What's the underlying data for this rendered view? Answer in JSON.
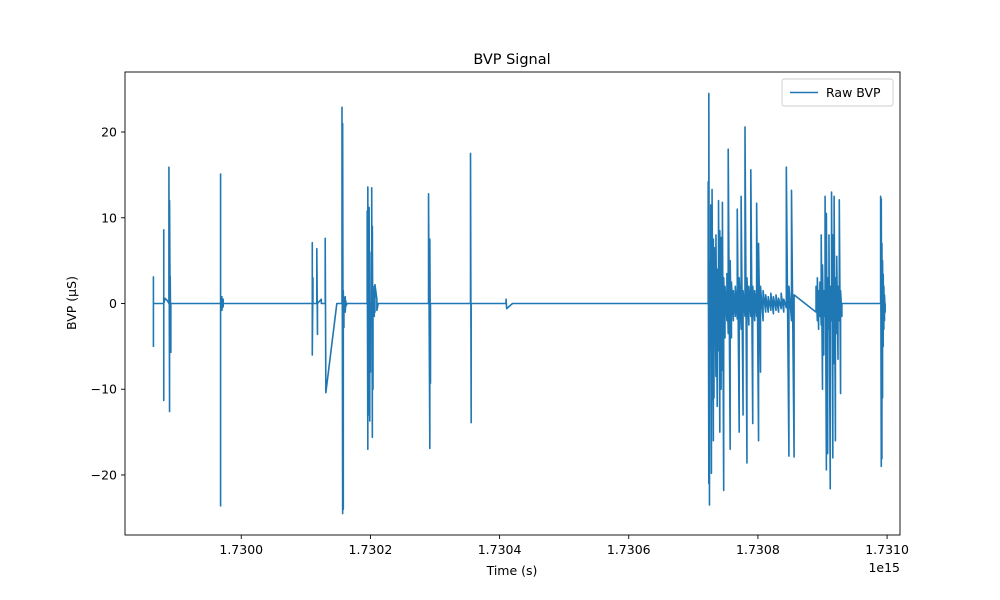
{
  "chart_data": {
    "type": "line",
    "title": "BVP Signal",
    "xlabel": "Time (s)",
    "ylabel": "BVP (μS)",
    "x_offset_label": "1e15",
    "xlim": [
      1.72982,
      1.73102
    ],
    "ylim": [
      -27,
      27
    ],
    "x_ticks": [
      1.73,
      1.7302,
      1.7304,
      1.7306,
      1.7308,
      1.731
    ],
    "x_tick_labels": [
      "1.7300",
      "1.7302",
      "1.7304",
      "1.7306",
      "1.7308",
      "1.7310"
    ],
    "y_ticks": [
      -20,
      -10,
      0,
      10,
      20
    ],
    "y_tick_labels": [
      "−20",
      "−10",
      "0",
      "10",
      "20"
    ],
    "legend": {
      "position": "top-right"
    },
    "grid": false,
    "series": [
      {
        "name": "Raw BVP",
        "color": "#1f77b4",
        "x": [
          1.729864,
          1.729864,
          1.729864,
          1.729864,
          1.72988,
          1.72988,
          1.72988,
          1.72988,
          1.729882,
          1.729886,
          1.729888,
          1.729888,
          1.729889,
          1.729889,
          1.72989,
          1.72989,
          1.729891,
          1.729891,
          1.72991,
          1.729968,
          1.729968,
          1.729968,
          1.729968,
          1.72997,
          1.72997,
          1.729972,
          1.729972,
          1.729972,
          1.73004,
          1.73004,
          1.73011,
          1.73011,
          1.73011,
          1.730111,
          1.730111,
          1.730117,
          1.730117,
          1.730118,
          1.730118,
          1.730124,
          1.730124,
          1.73013,
          1.73013,
          1.730131,
          1.730148,
          1.730156,
          1.730156,
          1.730157,
          1.730157,
          1.730158,
          1.730158,
          1.730159,
          1.730159,
          1.730161,
          1.730161,
          1.730162,
          1.730162,
          1.730164,
          1.730195,
          1.730195,
          1.730196,
          1.730196,
          1.730197,
          1.730197,
          1.730198,
          1.730198,
          1.730199,
          1.730199,
          1.7302,
          1.7302,
          1.730202,
          1.730202,
          1.730203,
          1.730203,
          1.730204,
          1.730204,
          1.730206,
          1.730206,
          1.730207,
          1.730207,
          1.73021,
          1.73021,
          1.73021,
          1.730212,
          1.730285,
          1.73029,
          1.73029,
          1.730292,
          1.730292,
          1.730293,
          1.730293,
          1.7303,
          1.730326,
          1.730355,
          1.730355,
          1.730356,
          1.730356,
          1.730357,
          1.73041,
          1.73041,
          1.730411,
          1.73042,
          1.73072,
          1.730723,
          1.730723,
          1.730724,
          1.730724,
          1.730725,
          1.730725,
          1.730726,
          1.730726,
          1.730727,
          1.730727,
          1.730728,
          1.730728,
          1.730729,
          1.730729,
          1.730731,
          1.730731,
          1.730732,
          1.730732,
          1.730733,
          1.730733,
          1.730735,
          1.730735,
          1.730737,
          1.730737,
          1.730739,
          1.730739,
          1.730741,
          1.730741,
          1.730743,
          1.730743,
          1.730745,
          1.730745,
          1.730747,
          1.730747,
          1.730749,
          1.730749,
          1.730752,
          1.730752,
          1.730754,
          1.730754,
          1.730757,
          1.730757,
          1.730759,
          1.730759,
          1.730762,
          1.730762,
          1.730765,
          1.730765,
          1.730768,
          1.730768,
          1.730771,
          1.730771,
          1.730774,
          1.730774,
          1.730777,
          1.730777,
          1.73078,
          1.73078,
          1.730783,
          1.730783,
          1.730786,
          1.730786,
          1.730789,
          1.730789,
          1.730792,
          1.730792,
          1.730795,
          1.730795,
          1.730798,
          1.730798,
          1.730801,
          1.730801,
          1.730804,
          1.730804,
          1.730808,
          1.730808,
          1.730812,
          1.730812,
          1.730816,
          1.730816,
          1.73082,
          1.73082,
          1.730824,
          1.730824,
          1.730828,
          1.730828,
          1.730832,
          1.730832,
          1.730836,
          1.730836,
          1.73084,
          1.73084,
          1.730844,
          1.730844,
          1.730848,
          1.730848,
          1.730852,
          1.730852,
          1.730856,
          1.730856,
          1.73089,
          1.73089,
          1.730892,
          1.730892,
          1.730894,
          1.730894,
          1.730896,
          1.730896,
          1.730898,
          1.730898,
          1.7309,
          1.7309,
          1.730902,
          1.730902,
          1.730904,
          1.730904,
          1.730906,
          1.730906,
          1.730908,
          1.730908,
          1.73091,
          1.73091,
          1.730912,
          1.730912,
          1.730914,
          1.730914,
          1.730916,
          1.730916,
          1.730918,
          1.730918,
          1.73092,
          1.73092,
          1.730922,
          1.730922,
          1.730924,
          1.730924,
          1.730926,
          1.730926,
          1.730928,
          1.730928,
          1.73093,
          1.73093,
          1.73096,
          1.73099,
          1.73099,
          1.730991,
          1.730991,
          1.730992,
          1.730992,
          1.730993,
          1.730993,
          1.730994,
          1.730994,
          1.730995,
          1.730995,
          1.730996,
          1.730996,
          1.730997,
          1.730997
        ],
        "y": [
          0,
          3.1,
          -5.0,
          0,
          0,
          8.6,
          -11.3,
          0,
          0.6,
          0.3,
          0,
          15.9,
          -12.6,
          12.0,
          -3.0,
          3.2,
          -5.7,
          0,
          0,
          0,
          15.1,
          -23.6,
          0,
          0.8,
          -0.8,
          0.5,
          -0.4,
          0,
          0,
          0,
          0,
          7.1,
          -6.0,
          3.0,
          0,
          0,
          6.4,
          -3.6,
          0,
          0.5,
          0,
          0,
          7.6,
          -10.4,
          0,
          0,
          22.9,
          -24.5,
          21.0,
          -24.0,
          1.5,
          -2.8,
          0,
          0.8,
          -1.0,
          0.3,
          -0.3,
          0,
          0,
          10.8,
          -17.0,
          13.6,
          -13.0,
          8.0,
          -12.0,
          11.2,
          -13.7,
          6.0,
          -8.0,
          0,
          0,
          13.5,
          -15.6,
          9.0,
          -10.0,
          1.5,
          -1.5,
          2.0,
          -1.0,
          2.2,
          0.5,
          0,
          -0.8,
          0,
          0,
          0,
          12.8,
          -16.9,
          7.5,
          -9.3,
          0,
          0,
          0,
          0,
          17.5,
          -13.9,
          0,
          0,
          0,
          0.5,
          -0.6,
          0,
          0,
          0,
          14.2,
          -21.0,
          24.5,
          -23.5,
          4.8,
          -5.3,
          3.0,
          -3.0,
          11.5,
          -19.8,
          10.0,
          -11.2,
          13.3,
          -16.0,
          7.5,
          -11.0,
          2.5,
          -2.0,
          6.5,
          -8.5,
          8.0,
          -12.0,
          4.0,
          -5.5,
          12.0,
          -15.0,
          8.5,
          -10.0,
          7.7,
          -7.8,
          11.8,
          -21.8,
          3.0,
          -4.0,
          2.0,
          -2.0,
          3.5,
          -3.5,
          18.0,
          -17.0,
          5.0,
          -4.0,
          2.5,
          -2.0,
          1.5,
          -1.5,
          2.0,
          -1.8,
          11.0,
          -15.0,
          3.0,
          -3.0,
          12.5,
          -13.0,
          1.5,
          -1.5,
          20.6,
          -18.6,
          3.0,
          -2.5,
          2.0,
          -1.5,
          15.6,
          -14.0,
          2.0,
          -2.0,
          1.5,
          -1.5,
          11.7,
          -16.0,
          7.0,
          -8.0,
          2.0,
          -2.0,
          1.5,
          -1.0,
          1.0,
          -1.0,
          0.8,
          -0.8,
          1.2,
          -1.2,
          0.8,
          -0.8,
          1.0,
          -1.0,
          0.6,
          -0.6,
          1.2,
          -1.0,
          0.5,
          -0.5,
          15.9,
          -17.8,
          2.0,
          -2.0,
          13.2,
          -17.9,
          1.0,
          -1.0,
          2.0,
          -2.0,
          3.0,
          -3.0,
          1.5,
          -1.5,
          2.5,
          -2.5,
          8.0,
          -10.0,
          4.5,
          -6.0,
          1.5,
          -1.5,
          12.5,
          -19.4,
          10.5,
          -17.5,
          3.0,
          -3.0,
          8.0,
          -21.6,
          2.0,
          -2.0,
          13.0,
          -18.0,
          8.0,
          -7.0,
          12.5,
          -16.0,
          3.0,
          -3.5,
          5.5,
          -6.5,
          2.0,
          -2.0,
          12.1,
          -10.5,
          1.5,
          -1.5,
          0,
          0,
          0,
          12.5,
          -19.0,
          12.2,
          -18.1,
          7.0,
          -11.0,
          5.0,
          -5.0,
          3.4,
          -3.0,
          2.0,
          -2.0,
          1.0,
          -1.0,
          0
        ]
      }
    ]
  }
}
